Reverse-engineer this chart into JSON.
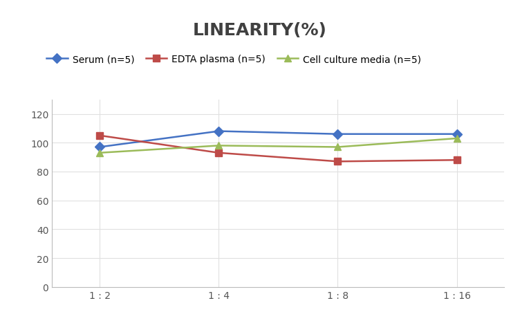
{
  "title": "LINEARITY(%)",
  "x_labels": [
    "1 : 2",
    "1 : 4",
    "1 : 8",
    "1 : 16"
  ],
  "x_positions": [
    0,
    1,
    2,
    3
  ],
  "series": [
    {
      "label": "Serum (n=5)",
      "values": [
        97,
        108,
        106,
        106
      ],
      "color": "#4472C4",
      "marker": "D",
      "linewidth": 1.8
    },
    {
      "label": "EDTA plasma (n=5)",
      "values": [
        105,
        93,
        87,
        88
      ],
      "color": "#BE4B48",
      "marker": "s",
      "linewidth": 1.8
    },
    {
      "label": "Cell culture media (n=5)",
      "values": [
        93,
        98,
        97,
        103
      ],
      "color": "#9BBB59",
      "marker": "^",
      "linewidth": 1.8
    }
  ],
  "ylim": [
    0,
    130
  ],
  "yticks": [
    0,
    20,
    40,
    60,
    80,
    100,
    120
  ],
  "background_color": "#FFFFFF",
  "grid_color": "#E0E0E0",
  "title_fontsize": 18,
  "title_color": "#404040",
  "legend_fontsize": 10,
  "tick_fontsize": 10,
  "marker_size": 7
}
